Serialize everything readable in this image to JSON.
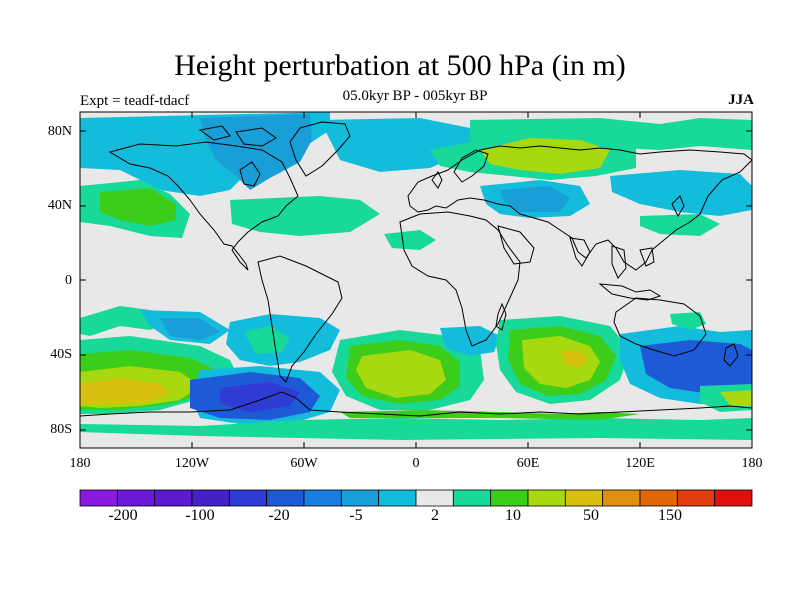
{
  "title": "Height perturbation at 500 hPa (in m)",
  "left_label": "Expt = teadf-tdacf",
  "center_label": "05.0kyr BP - 005kyr BP",
  "right_label": "JJA",
  "lat_ticks": [
    "80N",
    "40N",
    "0",
    "40S",
    "80S"
  ],
  "lon_ticks": [
    "180",
    "120W",
    "60W",
    "0",
    "60E",
    "120E",
    "180"
  ],
  "colorbar": {
    "colors": [
      "#8a1ae0",
      "#6a18d8",
      "#5a1ad0",
      "#4422c8",
      "#2f3cd4",
      "#1f5ad6",
      "#1a7ee0",
      "#1a9ed8",
      "#14bcdc",
      "#e8e8e8",
      "#18d89a",
      "#3ccc1a",
      "#a8d810",
      "#d8c010",
      "#e09010",
      "#e06808",
      "#e03c10",
      "#e01010"
    ],
    "labels": [
      "-200",
      "-100",
      "-20",
      "-5",
      "2",
      "10",
      "50",
      "150"
    ]
  },
  "map_colors": {
    "background": "#e8e8e8",
    "light_blue": "#14bcdc",
    "mid_blue": "#1a9ed8",
    "blue": "#1f5ad6",
    "dark_blue": "#2f3cd4",
    "teal_green": "#18d89a",
    "green": "#3ccc1a",
    "yellow_green": "#a8d810",
    "yellow": "#d8c010",
    "coast": "#000000"
  }
}
